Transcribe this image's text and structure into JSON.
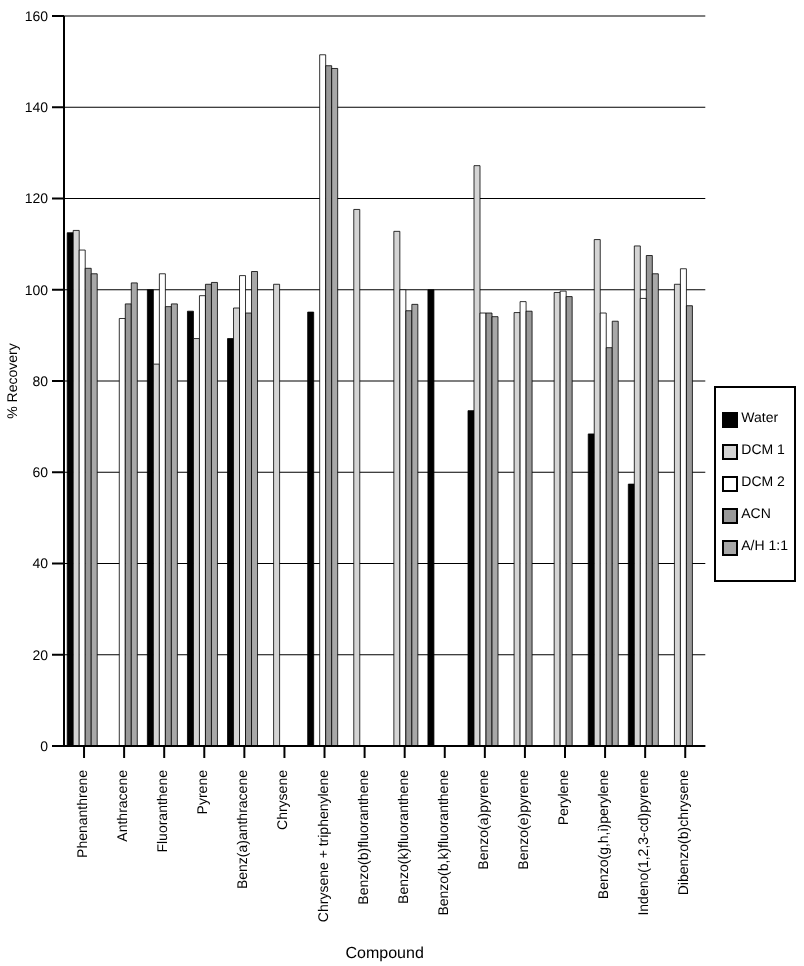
{
  "chart_data": {
    "type": "bar",
    "xlabel": "Compound",
    "ylabel": "% Recovery",
    "categories": [
      "Phenanthrene",
      "Anthracene",
      "Fluoranthene",
      "Pyrene",
      "Benz(a)anthracene",
      "Chrysene",
      "Chrysene + triphenylene",
      "Benzo(b)fluoranthene",
      "Benzo(k)fluoranthene",
      "Benzo(b,k)fluoranthene",
      "Benzo(a)pyrene",
      "Benzo(e)pyrene",
      "Perylene",
      "Benzo(g,h,i)perylene",
      "Indeno(1,2,3-cd)pyrene",
      "Dibenzo(b)chrysene"
    ],
    "series": [
      {
        "name": "Water",
        "color": "#000000",
        "values": [
          112.5,
          null,
          100,
          95.3,
          89.3,
          null,
          95.1,
          null,
          null,
          100,
          73.5,
          null,
          null,
          68.4,
          57.4,
          null
        ]
      },
      {
        "name": "DCM 1",
        "color": "#d4d4d4",
        "values": [
          113,
          null,
          83.7,
          89.3,
          96,
          101.2,
          null,
          117.6,
          112.8,
          null,
          127.2,
          95,
          99.4,
          111,
          109.6,
          101.2
        ]
      },
      {
        "name": "DCM 2",
        "color": "#ffffff",
        "values": [
          108.7,
          93.7,
          103.5,
          98.7,
          103.1,
          null,
          151.5,
          null,
          100,
          null,
          94.9,
          97.4,
          99.7,
          94.9,
          98.1,
          104.6
        ]
      },
      {
        "name": "ACN",
        "color": "#999999",
        "values": [
          104.7,
          96.9,
          96.3,
          101.2,
          94.9,
          null,
          149.1,
          null,
          95.4,
          null,
          94.9,
          95.3,
          98.5,
          87.3,
          107.5,
          96.5
        ]
      },
      {
        "name": "A/H 1:1",
        "color": "#a8a8a8",
        "values": [
          103.5,
          101.5,
          96.9,
          101.6,
          104,
          null,
          148.5,
          null,
          96.8,
          null,
          94.1,
          null,
          null,
          93.1,
          103.5,
          null
        ]
      }
    ],
    "ylim": [
      0,
      160
    ],
    "yticks": [
      0,
      20,
      40,
      60,
      80,
      100,
      120,
      140,
      160
    ],
    "grid": "y",
    "legend": "right"
  }
}
